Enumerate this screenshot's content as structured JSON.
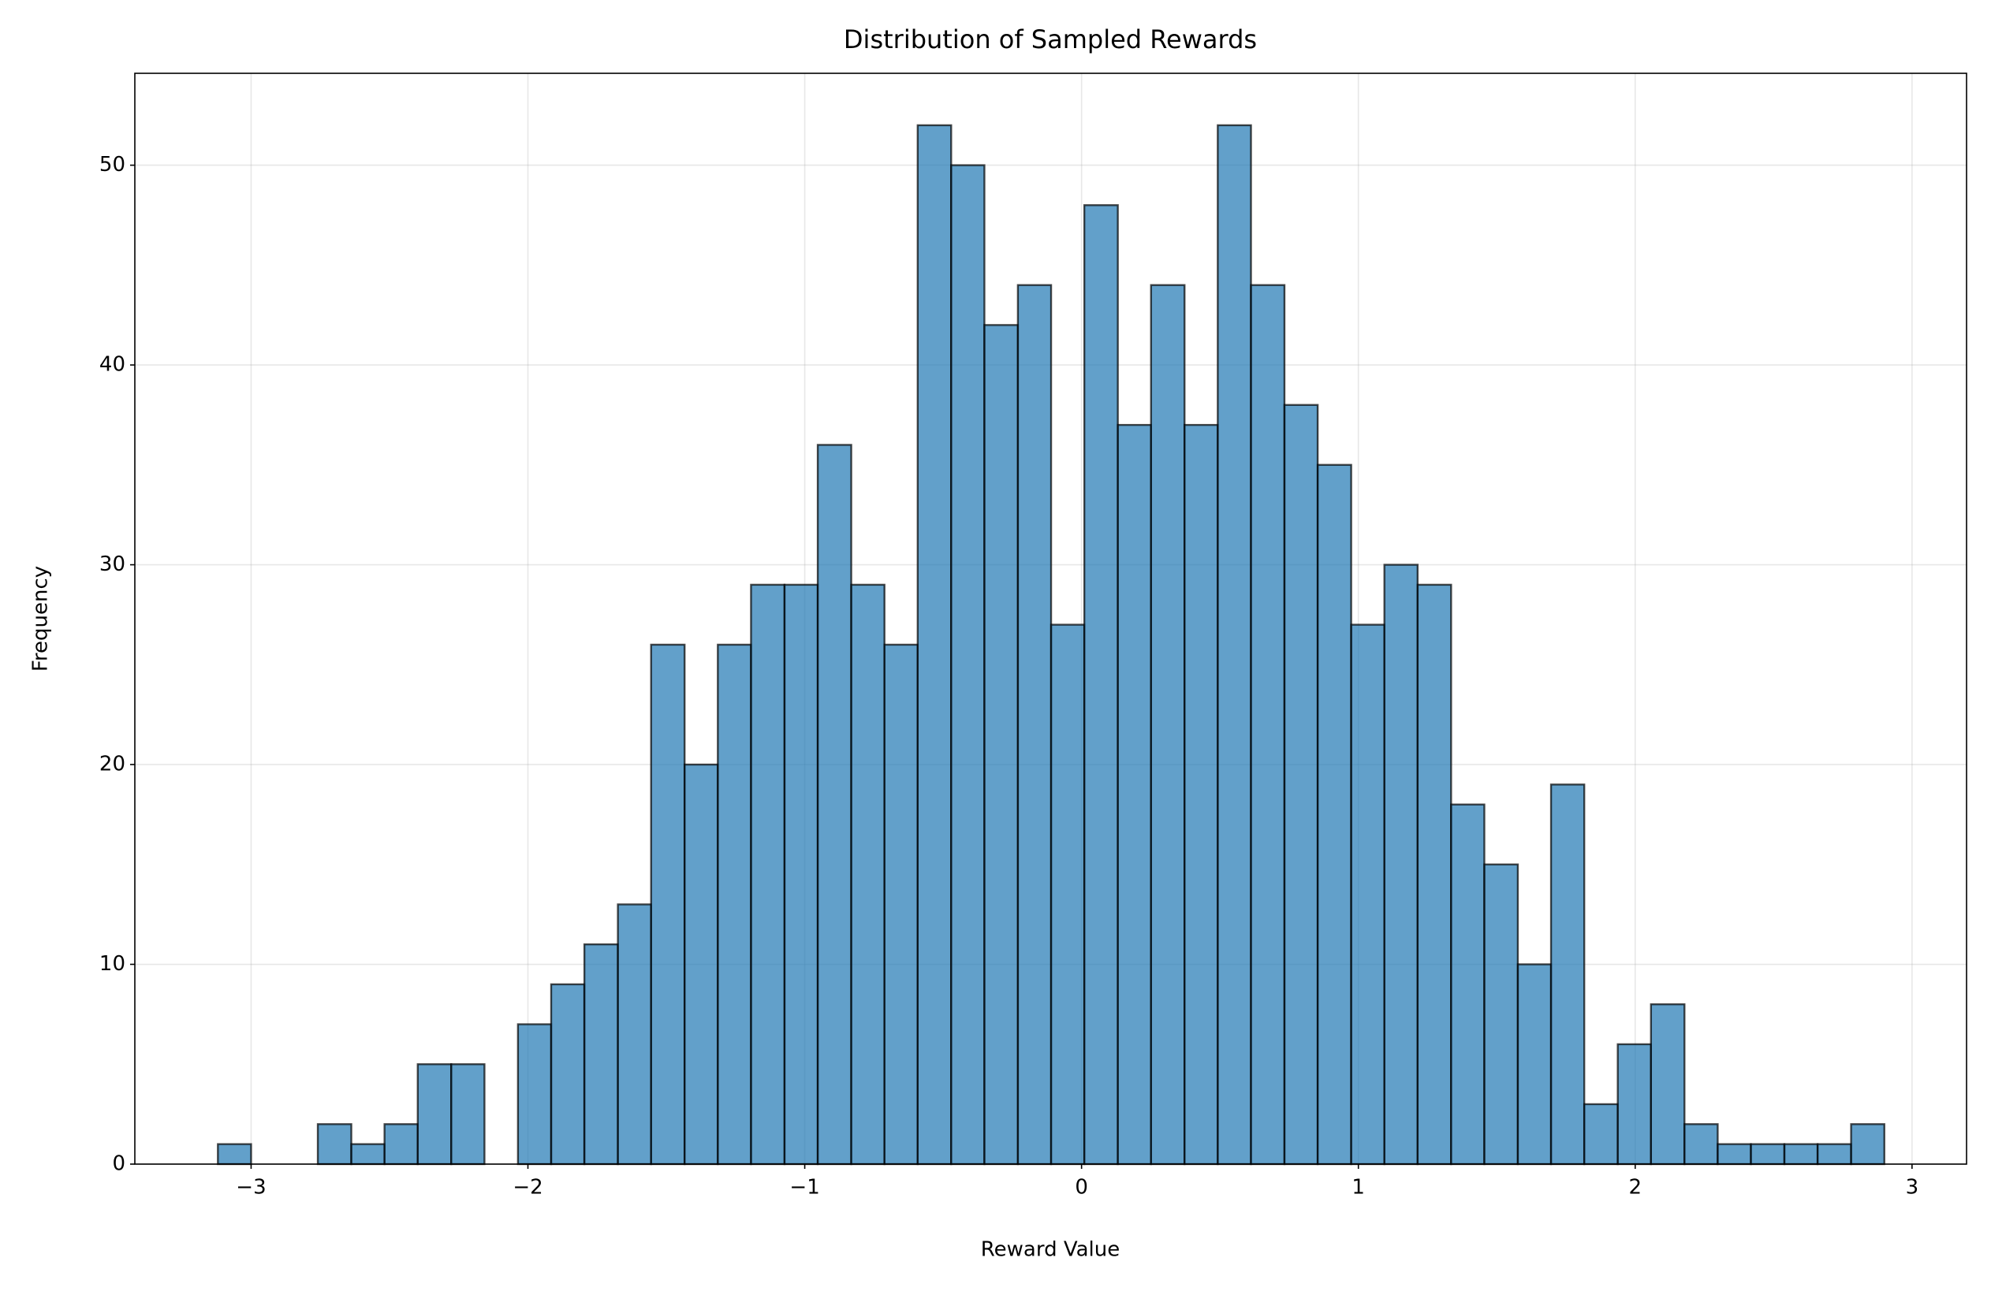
{
  "chart_data": {
    "type": "histogram",
    "title": "Distribution of Sampled Rewards",
    "xlabel": "Reward Value",
    "ylabel": "Frequency",
    "bins": [
      -3.12,
      -3.0,
      -2.879,
      -2.759,
      -2.638,
      -2.518,
      -2.398,
      -2.277,
      -2.157,
      -2.036,
      -1.916,
      -1.796,
      -1.675,
      -1.555,
      -1.434,
      -1.314,
      -1.194,
      -1.073,
      -0.953,
      -0.832,
      -0.712,
      -0.592,
      -0.471,
      -0.351,
      -0.23,
      -0.11,
      0.01,
      0.131,
      0.251,
      0.372,
      0.492,
      0.612,
      0.733,
      0.853,
      0.974,
      1.094,
      1.214,
      1.335,
      1.455,
      1.576,
      1.696,
      1.816,
      1.937,
      2.057,
      2.178,
      2.298,
      2.418,
      2.539,
      2.659,
      2.78,
      2.9
    ],
    "counts": [
      1,
      0,
      0,
      2,
      1,
      2,
      5,
      5,
      0,
      7,
      9,
      11,
      13,
      26,
      20,
      26,
      29,
      29,
      36,
      29,
      26,
      52,
      50,
      42,
      44,
      27,
      48,
      37,
      44,
      37,
      52,
      44,
      38,
      35,
      27,
      30,
      29,
      18,
      15,
      10,
      19,
      3,
      6,
      8,
      2,
      1,
      1,
      1,
      1,
      2
    ],
    "color": "#1f77b4",
    "alpha": 0.7,
    "edgecolor": "#000000",
    "xlim": [
      -3.42,
      3.197
    ],
    "ylim": [
      0,
      54.6
    ],
    "xticks": [
      {
        "value": -3,
        "label": "−3"
      },
      {
        "value": -2,
        "label": "−2"
      },
      {
        "value": -1,
        "label": "−1"
      },
      0,
      1,
      2,
      3
    ],
    "yticks": [
      0,
      10,
      20,
      30,
      40,
      50
    ],
    "grid": true
  }
}
